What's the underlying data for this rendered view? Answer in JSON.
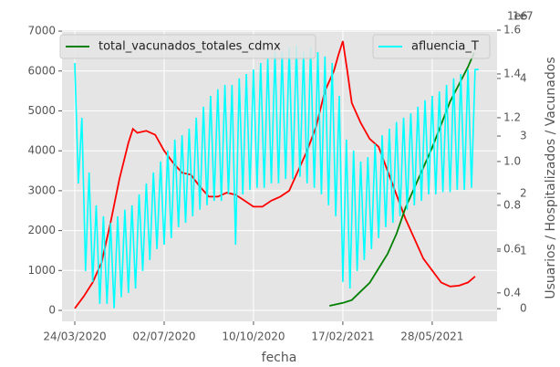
{
  "chart_data": {
    "type": "line",
    "xlabel": "fecha",
    "ylabel_right": "Usuarios / Hospitalizados / Vacunados",
    "xlim": [
      -14.3,
      472.6
    ],
    "xticks": [
      {
        "value": 0,
        "label": "24/03/2020"
      },
      {
        "value": 100,
        "label": "02/07/2020"
      },
      {
        "value": 200,
        "label": "10/10/2020"
      },
      {
        "value": 300,
        "label": "17/02/2021"
      },
      {
        "value": 400,
        "label": "28/05/2021"
      }
    ],
    "ylim": [
      -275,
      7025
    ],
    "yticks": [
      0,
      1000,
      2000,
      3000,
      4000,
      5000,
      6000,
      7000
    ],
    "y2lim": [
      0.27,
      1.6
    ],
    "y2ticks": [
      0.4,
      0.6,
      0.8,
      1.0,
      1.2,
      1.4,
      1.6
    ],
    "y2_offset": "1e7",
    "y3lim": [
      -0.22,
      4.84
    ],
    "y3ticks": [
      0,
      1,
      2,
      3,
      4
    ],
    "y3_offset": "1e6",
    "grid": true,
    "series": [
      {
        "color": "#ff0000",
        "axis": "y",
        "x": [
          0,
          10,
          20,
          30,
          40,
          50,
          60,
          65,
          70,
          80,
          90,
          100,
          110,
          120,
          130,
          140,
          150,
          160,
          170,
          180,
          190,
          200,
          210,
          220,
          230,
          240,
          250,
          260,
          270,
          280,
          290,
          295,
          300,
          305,
          310,
          320,
          330,
          340,
          350,
          360,
          370,
          380,
          390,
          400,
          410,
          420,
          430,
          440,
          448
        ],
        "values": [
          50,
          350,
          700,
          1200,
          2200,
          3300,
          4200,
          4550,
          4450,
          4500,
          4400,
          4000,
          3700,
          3450,
          3400,
          3100,
          2850,
          2850,
          2950,
          2900,
          2750,
          2600,
          2600,
          2750,
          2850,
          3000,
          3500,
          4000,
          4600,
          5500,
          6000,
          6400,
          6750,
          6000,
          5200,
          4700,
          4300,
          4100,
          3500,
          2900,
          2300,
          1800,
          1300,
          1000,
          700,
          600,
          620,
          700,
          850
        ]
      },
      {
        "name": "total_vacunados_totales_cdmx",
        "color": "#008000",
        "axis": "y3",
        "x": [
          285,
          300,
          310,
          320,
          330,
          340,
          350,
          360,
          370,
          380,
          390,
          400,
          410,
          420,
          430,
          440,
          447
        ],
        "values": [
          0.05,
          0.1,
          0.15,
          0.3,
          0.45,
          0.7,
          0.95,
          1.3,
          1.75,
          2.1,
          2.45,
          2.8,
          3.2,
          3.6,
          3.9,
          4.2,
          4.45
        ]
      },
      {
        "name": "afluencia_T",
        "color": "#00ffff",
        "axis": "y2",
        "x": [
          0,
          4,
          8,
          12,
          16,
          20,
          24,
          28,
          32,
          36,
          40,
          44,
          48,
          52,
          56,
          60,
          64,
          68,
          72,
          76,
          80,
          84,
          88,
          92,
          96,
          100,
          104,
          108,
          112,
          116,
          120,
          124,
          128,
          132,
          136,
          140,
          144,
          148,
          152,
          156,
          160,
          164,
          168,
          172,
          176,
          180,
          184,
          188,
          192,
          196,
          200,
          204,
          208,
          212,
          216,
          220,
          224,
          228,
          232,
          236,
          240,
          244,
          248,
          252,
          256,
          260,
          264,
          268,
          272,
          276,
          280,
          284,
          288,
          292,
          296,
          300,
          304,
          308,
          312,
          316,
          320,
          324,
          328,
          332,
          336,
          340,
          344,
          348,
          352,
          356,
          360,
          364,
          368,
          372,
          376,
          380,
          384,
          388,
          392,
          396,
          400,
          404,
          408,
          412,
          416,
          420,
          424,
          428,
          432,
          436,
          440,
          444,
          448,
          452
        ],
        "values": [
          1.45,
          0.9,
          1.2,
          0.5,
          0.95,
          0.45,
          0.8,
          0.35,
          0.75,
          0.35,
          0.72,
          0.33,
          0.75,
          0.38,
          0.78,
          0.4,
          0.8,
          0.42,
          0.85,
          0.5,
          0.9,
          0.55,
          0.95,
          0.6,
          1.0,
          0.62,
          1.05,
          0.65,
          1.1,
          0.7,
          1.12,
          0.72,
          1.15,
          0.75,
          1.2,
          0.78,
          1.25,
          0.8,
          1.3,
          0.82,
          1.33,
          0.82,
          1.35,
          0.85,
          1.35,
          0.62,
          1.38,
          0.85,
          1.4,
          0.87,
          1.42,
          0.88,
          1.45,
          0.88,
          1.47,
          0.9,
          1.5,
          0.9,
          1.5,
          0.92,
          1.52,
          0.92,
          1.53,
          0.93,
          1.5,
          0.9,
          1.52,
          0.88,
          1.5,
          0.85,
          1.48,
          0.8,
          1.45,
          0.75,
          1.3,
          0.45,
          1.1,
          0.42,
          1.05,
          0.5,
          1.0,
          0.55,
          1.02,
          0.6,
          1.08,
          0.65,
          1.12,
          0.7,
          1.15,
          0.72,
          1.18,
          0.75,
          1.2,
          0.78,
          1.22,
          0.8,
          1.25,
          0.82,
          1.28,
          0.85,
          1.3,
          0.85,
          1.32,
          0.86,
          1.35,
          0.86,
          1.38,
          0.87,
          1.4,
          0.87,
          1.42,
          0.88,
          1.42,
          1.42
        ]
      }
    ]
  }
}
